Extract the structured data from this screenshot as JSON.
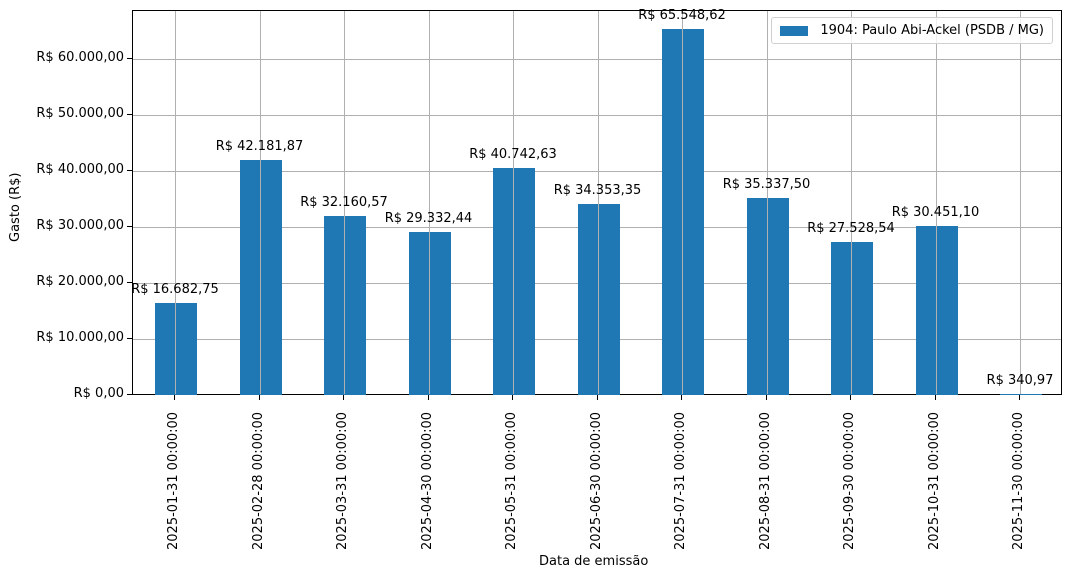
{
  "chart_data": {
    "type": "bar",
    "title": "",
    "xlabel": "Data de emissão",
    "ylabel": "Gasto (R$)",
    "ylim": [
      0,
      68800
    ],
    "grid": true,
    "legend_position": "upper right",
    "categories": [
      "2025-01-31 00:00:00",
      "2025-02-28 00:00:00",
      "2025-03-31 00:00:00",
      "2025-04-30 00:00:00",
      "2025-05-31 00:00:00",
      "2025-06-30 00:00:00",
      "2025-07-31 00:00:00",
      "2025-08-31 00:00:00",
      "2025-09-30 00:00:00",
      "2025-10-31 00:00:00",
      "2025-11-30 00:00:00"
    ],
    "series": [
      {
        "name": "1904: Paulo Abi-Ackel (PSDB / MG)",
        "color": "#1f77b4",
        "values": [
          16682.75,
          42181.87,
          32160.57,
          29332.44,
          40742.63,
          34353.35,
          65548.62,
          35337.5,
          27528.54,
          30451.1,
          340.97
        ],
        "labels": [
          "R$ 16.682,75",
          "R$ 42.181,87",
          "R$ 32.160,57",
          "R$ 29.332,44",
          "R$ 40.742,63",
          "R$ 34.353,35",
          "R$ 65.548,62",
          "R$ 35.337,50",
          "R$ 27.528,54",
          "R$ 30.451,10",
          "R$ 340,97"
        ]
      }
    ],
    "yticks": [
      0,
      10000,
      20000,
      30000,
      40000,
      50000,
      60000
    ],
    "ytick_labels": [
      "R$ 0,00",
      "R$ 10.000,00",
      "R$ 20.000,00",
      "R$ 30.000,00",
      "R$ 40.000,00",
      "R$ 50.000,00",
      "R$ 60.000,00"
    ]
  }
}
